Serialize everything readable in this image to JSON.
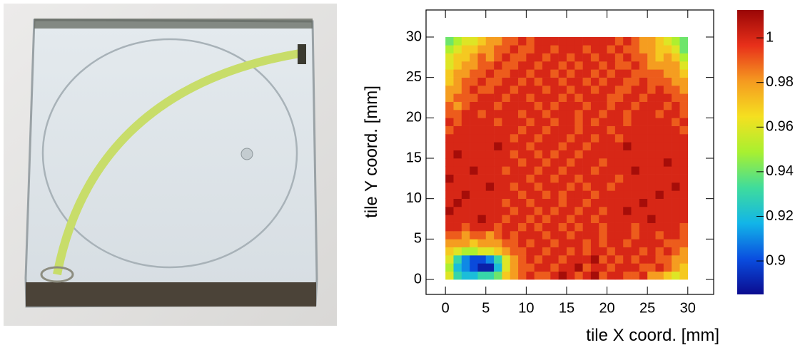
{
  "chart_data": {
    "type": "heatmap",
    "xlabel": "tile X coord. [mm]",
    "ylabel": "tile Y coord. [mm]",
    "xlim": [
      -2.4,
      33.2
    ],
    "ylim": [
      -1.85,
      33.35
    ],
    "xticks": [
      0,
      5,
      10,
      15,
      20,
      25,
      30
    ],
    "yticks": [
      0,
      5,
      10,
      15,
      20,
      25,
      30
    ],
    "zlim": [
      0.885,
      1.0125
    ],
    "zticks": [
      0.9,
      0.92,
      0.94,
      0.96,
      0.98,
      1
    ],
    "colorscale": [
      "#0b0b8f",
      "#0a4ee0",
      "#12b5e8",
      "#3fdc9c",
      "#a8f030",
      "#f5e020",
      "#f59a20",
      "#e8301a",
      "#9a0606"
    ],
    "xbins": [
      0,
      1,
      2,
      3,
      4,
      5,
      6,
      7,
      8,
      9,
      10,
      11,
      12,
      13,
      14,
      15,
      16,
      17,
      18,
      19,
      20,
      21,
      22,
      23,
      24,
      25,
      26,
      27,
      28,
      29,
      30
    ],
    "ybins": [
      0,
      1,
      2,
      3,
      4,
      5,
      6,
      7,
      8,
      9,
      10,
      11,
      12,
      13,
      14,
      15,
      16,
      17,
      18,
      19,
      20,
      21,
      22,
      23,
      24,
      25,
      26,
      27,
      28,
      29,
      30
    ],
    "z": [
      [
        0.96,
        0.93,
        0.92,
        0.92,
        0.93,
        0.93,
        0.94,
        0.97,
        0.98,
        0.99,
        1,
        0.99,
        0.99,
        1,
        1.01,
        1,
        0.99,
        1,
        1.01,
        0.99,
        1,
        1,
        0.99,
        0.99,
        1,
        0.98,
        0.98,
        0.97,
        0.96,
        0.97
      ],
      [
        0.95,
        0.92,
        0.91,
        0.9,
        0.89,
        0.89,
        0.92,
        0.96,
        0.98,
        0.99,
        0.99,
        1,
        1,
        0.99,
        1,
        1,
        1.01,
        0.99,
        1,
        1,
        0.99,
        1,
        1,
        1,
        0.99,
        0.99,
        1,
        0.99,
        0.98,
        0.97
      ],
      [
        0.96,
        0.93,
        0.91,
        0.9,
        0.9,
        0.91,
        0.93,
        0.96,
        0.98,
        0.99,
        1,
        0.99,
        1,
        1,
        0.99,
        1,
        1,
        1,
        1.01,
        0.99,
        1,
        0.99,
        1,
        0.99,
        1,
        1,
        0.99,
        0.99,
        0.98,
        0.98
      ],
      [
        0.97,
        0.96,
        0.95,
        0.95,
        0.96,
        0.96,
        0.97,
        0.98,
        0.99,
        0.99,
        1,
        1,
        0.99,
        1,
        1,
        0.99,
        1,
        0.99,
        1,
        1,
        0.99,
        1,
        1,
        1,
        0.99,
        1,
        0.99,
        1,
        0.99,
        0.98
      ],
      [
        0.98,
        0.98,
        0.98,
        0.97,
        0.98,
        0.98,
        0.98,
        0.99,
        0.99,
        1,
        0.99,
        1,
        1,
        0.99,
        1,
        1,
        1,
        0.99,
        1,
        0.99,
        1,
        1,
        0.99,
        1,
        1,
        1,
        1,
        0.99,
        0.99,
        0.99
      ],
      [
        0.99,
        0.99,
        0.98,
        0.99,
        0.99,
        0.98,
        0.99,
        1,
        0.99,
        1,
        1,
        1,
        0.99,
        1,
        1,
        0.99,
        1,
        1,
        1,
        0.99,
        1,
        1,
        1,
        0.99,
        1,
        1,
        0.99,
        1,
        1,
        0.99
      ],
      [
        1,
        1,
        0.99,
        1,
        1,
        1,
        0.99,
        1,
        1,
        0.99,
        1,
        0.99,
        1,
        1,
        0.99,
        1,
        0.99,
        1,
        1,
        0.99,
        1,
        1,
        1,
        0.99,
        1,
        1,
        1,
        1,
        1,
        0.99
      ],
      [
        1,
        1,
        1,
        1,
        1.01,
        1,
        1,
        0.99,
        1,
        1,
        0.99,
        1,
        0.99,
        1,
        1,
        0.99,
        1,
        1,
        0.99,
        1,
        1,
        1,
        1,
        1,
        1,
        1.01,
        1,
        1,
        1,
        1
      ],
      [
        1.01,
        1,
        1,
        1,
        1,
        1,
        1,
        1,
        0.99,
        1,
        1,
        0.99,
        1,
        0.99,
        1,
        1,
        0.99,
        1,
        1,
        0.99,
        1,
        1,
        1.01,
        1,
        1,
        1,
        1,
        1,
        1,
        1
      ],
      [
        1,
        1.01,
        1,
        1,
        1,
        1,
        1,
        0.99,
        1,
        1,
        0.99,
        1,
        1,
        1,
        0.99,
        1,
        1,
        0.99,
        1,
        1,
        1,
        1,
        1,
        1,
        1.01,
        1,
        1,
        1,
        1,
        1
      ],
      [
        1,
        1,
        1.01,
        1,
        1,
        1,
        1,
        1,
        1,
        0.99,
        1,
        1,
        0.99,
        1,
        0.99,
        1,
        1,
        1,
        0.99,
        1,
        1,
        1,
        1,
        1,
        1,
        1,
        1.01,
        1,
        1,
        1
      ],
      [
        1,
        1,
        1,
        1,
        1,
        1.01,
        1,
        1,
        0.99,
        1,
        1,
        0.99,
        1,
        1,
        1,
        0.99,
        1,
        0.99,
        1,
        1,
        0.99,
        1,
        1,
        1,
        1,
        1,
        1,
        1,
        1.01,
        1
      ],
      [
        1.01,
        1,
        1,
        1,
        1,
        1,
        1,
        1,
        1,
        1,
        0.99,
        1,
        1,
        0.99,
        1,
        1,
        0.99,
        1,
        1,
        1,
        1,
        0.99,
        1,
        1,
        1,
        1,
        1,
        1,
        1,
        1
      ],
      [
        1,
        1,
        1,
        1.01,
        1,
        1,
        1,
        0.99,
        1,
        1,
        1,
        0.99,
        1,
        1,
        0.99,
        1,
        1,
        1,
        0.99,
        1,
        1,
        1,
        1,
        1.01,
        1,
        1,
        1,
        1,
        1,
        1
      ],
      [
        1,
        1,
        1,
        1,
        1,
        1,
        1,
        1,
        1,
        0.99,
        1,
        1,
        0.99,
        1,
        1,
        0.99,
        1,
        1,
        1,
        0.99,
        1,
        1,
        1,
        1,
        1,
        1,
        1,
        1.01,
        1,
        1
      ],
      [
        1,
        1.01,
        1,
        1,
        1,
        1,
        1,
        1,
        0.99,
        1,
        1,
        0.99,
        1,
        0.99,
        1,
        1,
        0.99,
        1,
        1,
        1,
        1,
        1,
        1,
        1,
        1,
        1,
        1,
        1,
        1,
        1
      ],
      [
        1,
        1,
        1,
        1,
        1,
        1,
        1.01,
        1,
        1,
        1,
        0.99,
        1,
        1,
        1,
        0.99,
        1,
        1,
        0.99,
        1,
        1,
        1,
        1,
        1.01,
        1,
        1,
        1,
        1,
        1,
        1,
        1
      ],
      [
        1,
        1,
        1,
        1,
        1,
        1,
        1,
        1,
        0.99,
        1,
        1,
        0.99,
        1,
        1,
        1,
        0.99,
        1,
        1,
        0.99,
        1,
        1,
        0.99,
        1,
        1,
        1,
        1,
        1,
        1,
        1,
        1
      ],
      [
        0.99,
        1,
        1,
        1,
        1,
        1,
        1,
        1,
        1,
        0.99,
        1,
        1,
        0.99,
        1,
        1,
        1,
        0.99,
        1,
        1,
        1,
        0.99,
        1,
        1,
        1,
        1,
        1,
        1,
        1,
        1,
        0.99
      ],
      [
        1,
        0.99,
        1,
        1,
        1,
        1,
        0.99,
        1,
        1,
        1,
        0.99,
        1,
        1,
        0.99,
        1,
        1,
        0.99,
        1,
        0.99,
        1,
        1,
        1,
        0.99,
        1,
        1,
        1,
        1,
        1,
        0.99,
        1
      ],
      [
        0.99,
        0.99,
        1,
        1,
        0.99,
        1,
        1,
        1,
        1,
        0.99,
        1,
        1,
        0.99,
        1,
        1,
        1,
        0.99,
        1,
        1,
        0.99,
        1,
        1,
        0.99,
        1,
        1,
        1,
        0.99,
        1,
        1,
        0.99
      ],
      [
        0.99,
        0.98,
        0.99,
        1,
        1,
        1,
        0.99,
        1,
        1,
        1,
        1,
        0.99,
        1,
        0.99,
        1,
        1,
        1,
        0.99,
        1,
        1,
        0.99,
        1,
        1,
        0.99,
        1,
        1,
        1,
        0.99,
        1,
        0.99
      ],
      [
        0.98,
        0.99,
        0.99,
        0.99,
        1,
        1,
        1,
        0.99,
        1,
        1,
        0.99,
        1,
        1,
        1,
        0.99,
        1,
        0.99,
        1,
        1,
        1,
        0.99,
        0.99,
        1,
        1,
        0.99,
        1,
        1,
        1,
        0.99,
        0.99
      ],
      [
        0.98,
        0.98,
        0.99,
        1,
        0.99,
        0.99,
        1,
        1,
        0.99,
        1,
        1,
        1,
        0.99,
        1,
        1,
        0.99,
        1,
        1,
        0.99,
        1,
        1,
        0.99,
        0.99,
        1,
        1,
        0.99,
        1,
        0.99,
        0.99,
        0.98
      ],
      [
        0.97,
        0.98,
        0.99,
        0.99,
        1,
        0.99,
        0.99,
        1,
        1,
        0.99,
        1,
        0.99,
        1,
        1,
        0.99,
        1,
        1,
        0.99,
        1,
        0.99,
        1,
        1,
        0.99,
        0.99,
        1,
        0.99,
        0.99,
        0.99,
        0.98,
        0.98
      ],
      [
        0.97,
        0.98,
        0.98,
        0.99,
        0.99,
        1,
        0.99,
        0.99,
        1,
        1,
        0.99,
        1,
        1,
        0.99,
        1,
        0.99,
        1,
        1,
        0.99,
        1,
        0.99,
        1,
        1,
        0.99,
        0.99,
        0.99,
        0.99,
        0.98,
        0.98,
        0.97
      ],
      [
        0.96,
        0.97,
        0.98,
        0.98,
        0.99,
        0.99,
        1,
        0.99,
        0.99,
        1,
        1,
        0.99,
        1,
        1,
        0.99,
        1,
        0.99,
        1,
        1,
        0.99,
        1,
        0.99,
        0.99,
        1,
        0.99,
        0.98,
        0.98,
        0.98,
        0.98,
        0.96
      ],
      [
        0.96,
        0.97,
        0.97,
        0.98,
        0.99,
        0.98,
        0.99,
        1,
        0.99,
        0.99,
        1,
        1,
        0.99,
        1,
        1,
        0.99,
        1,
        1,
        0.99,
        1,
        1,
        0.99,
        1,
        0.99,
        0.99,
        0.98,
        0.97,
        0.98,
        0.97,
        0.95
      ],
      [
        0.95,
        0.96,
        0.97,
        0.97,
        0.98,
        0.98,
        0.99,
        0.99,
        1,
        0.99,
        0.99,
        1,
        1,
        0.99,
        1,
        1,
        1,
        0.99,
        1,
        1,
        0.99,
        1,
        0.99,
        0.99,
        0.98,
        0.98,
        0.97,
        0.97,
        0.96,
        0.94
      ],
      [
        0.94,
        0.95,
        0.96,
        0.96,
        0.97,
        0.98,
        0.98,
        0.99,
        0.99,
        1,
        0.99,
        1,
        1,
        1,
        1,
        1,
        1,
        1,
        1,
        1,
        1,
        0.99,
        1,
        0.99,
        0.98,
        0.98,
        0.97,
        0.96,
        0.95,
        0.94
      ]
    ]
  }
}
